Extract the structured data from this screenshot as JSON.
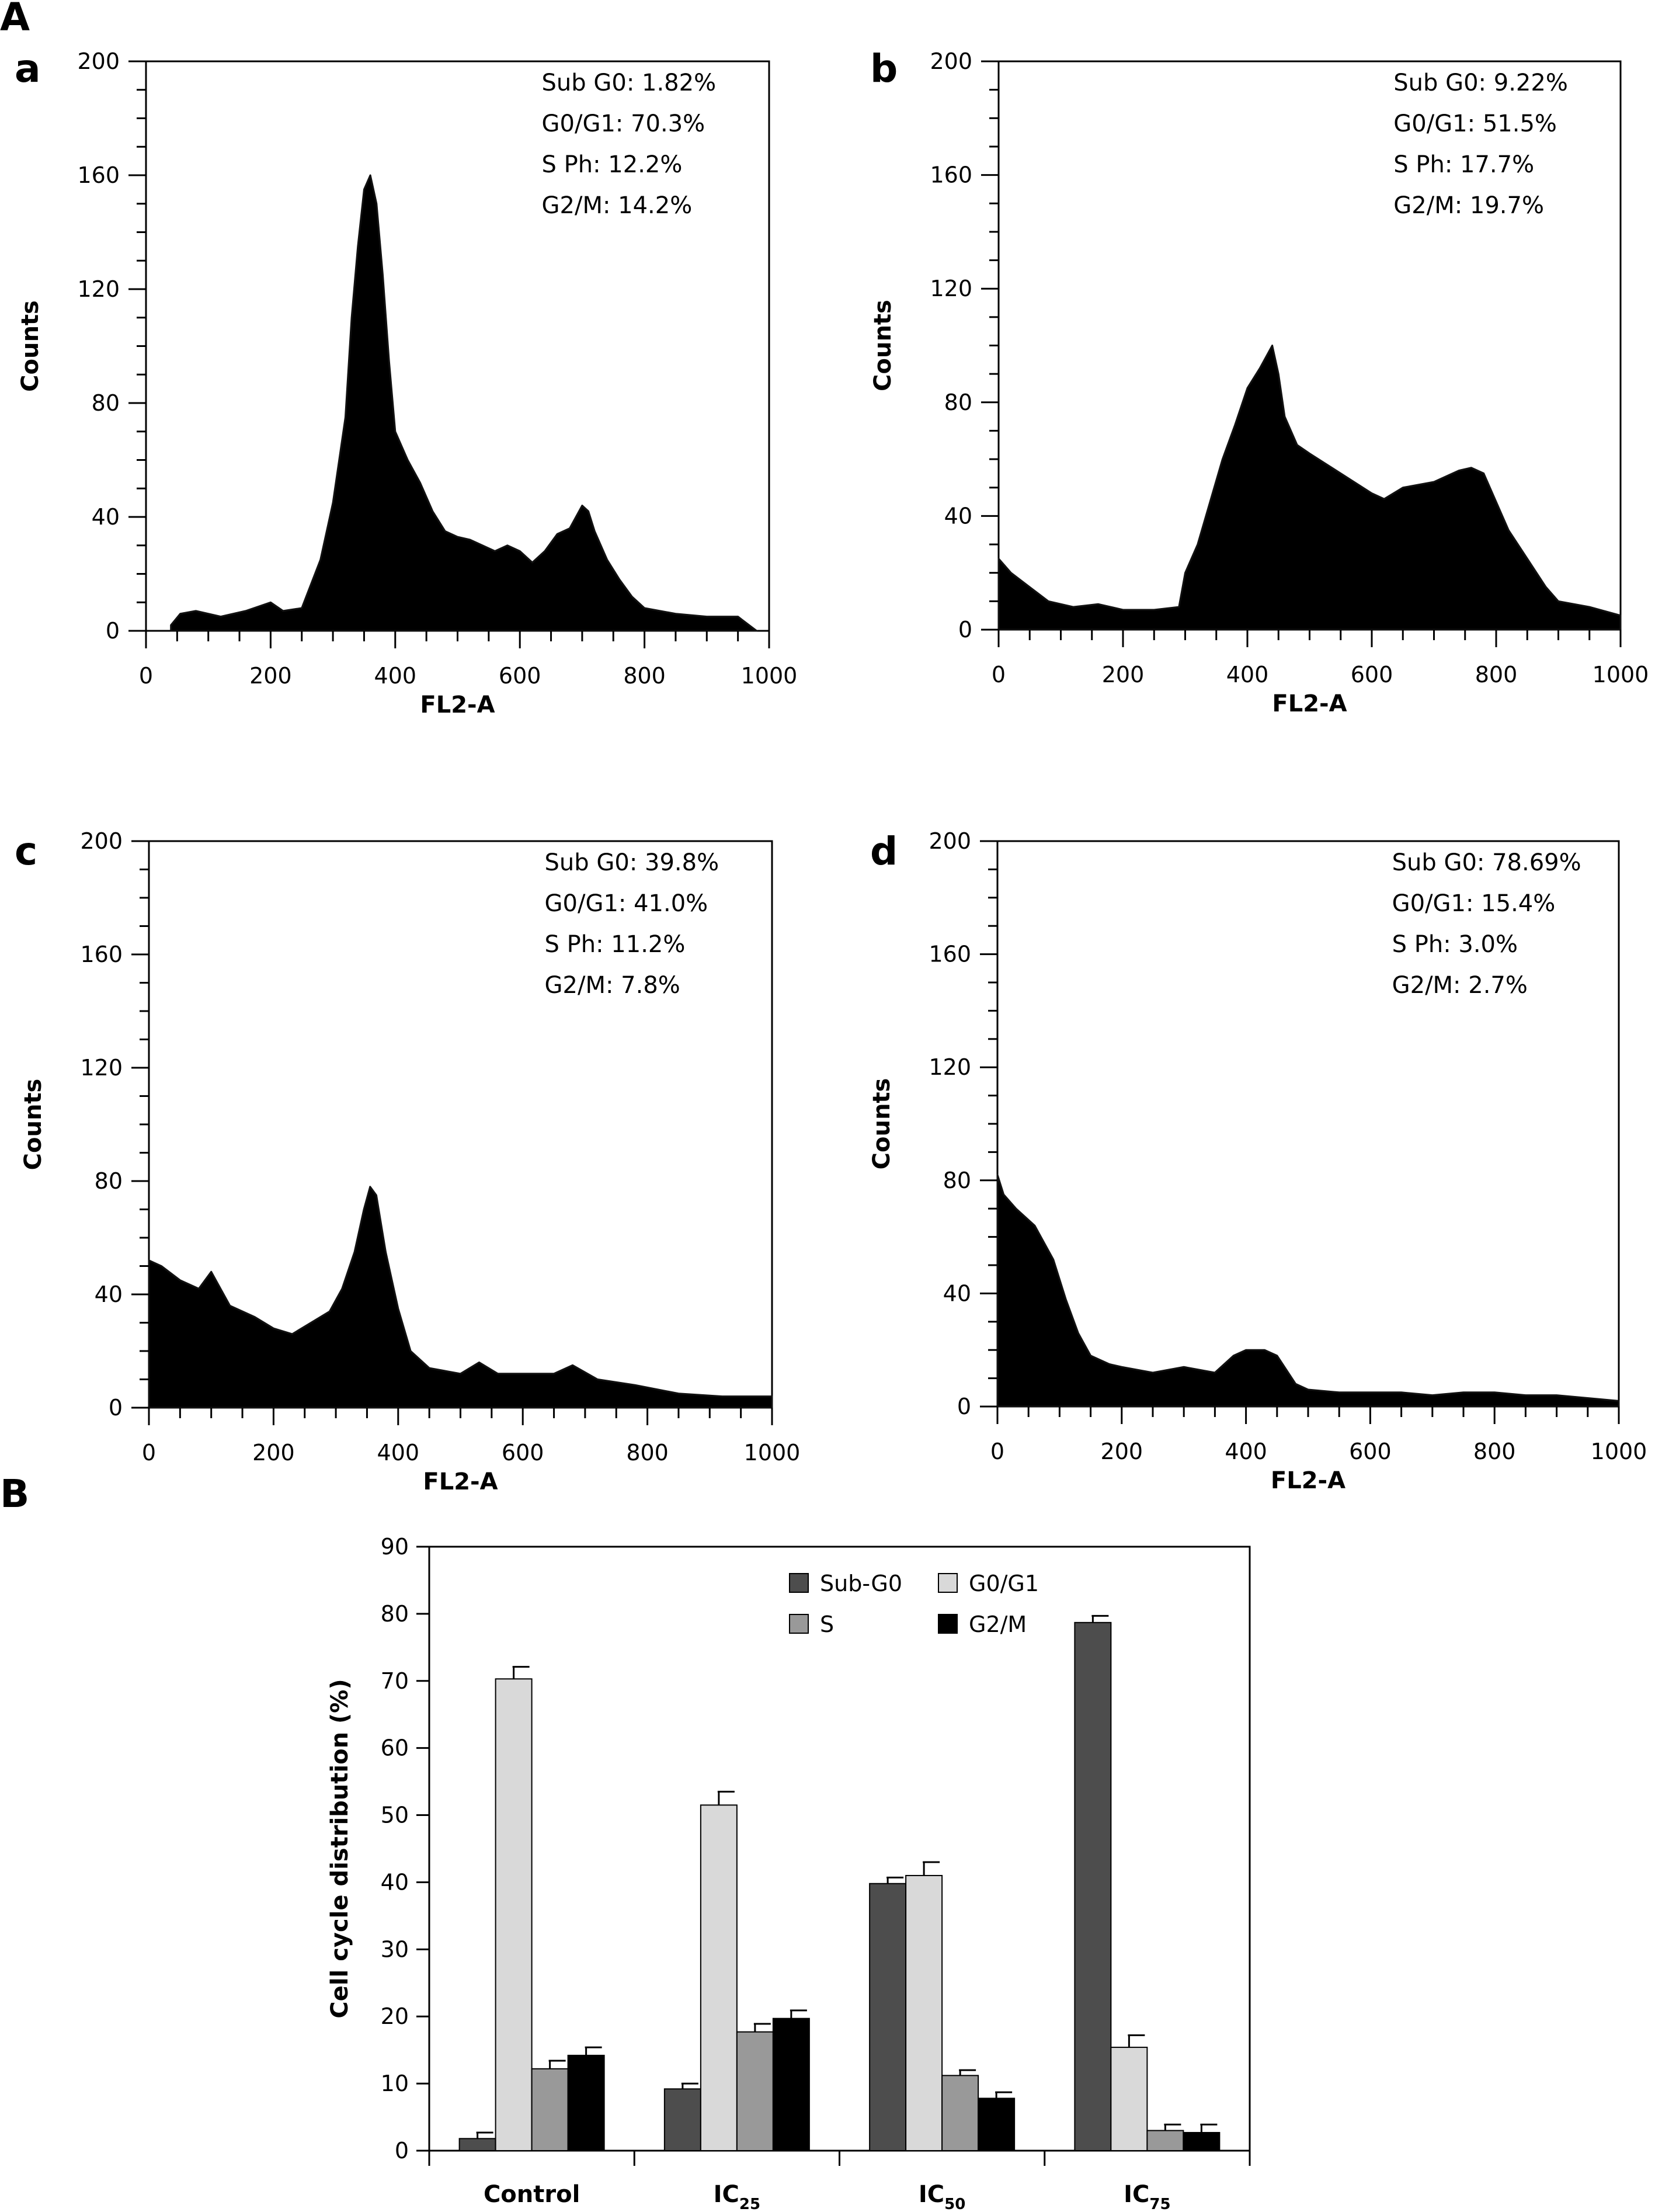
{
  "figure": {
    "panel_A_label": "A",
    "panel_B_label": "B"
  },
  "chart_data": [
    {
      "id": "a",
      "type": "area",
      "label": "a",
      "xlabel": "FL2-A",
      "ylabel": "Counts",
      "xlim": [
        0,
        1000
      ],
      "ylim": [
        0,
        200
      ],
      "xticks": [
        0,
        200,
        400,
        600,
        800,
        1000
      ],
      "yticks": [
        0,
        40,
        80,
        120,
        160,
        200
      ],
      "annotations": [
        "Sub G0: 1.82%",
        "G0/G1: 70.3%",
        "S Ph: 12.2%",
        "G2/M: 14.2%"
      ],
      "x": [
        40,
        55,
        80,
        120,
        160,
        200,
        220,
        250,
        280,
        300,
        320,
        330,
        340,
        350,
        360,
        370,
        380,
        390,
        400,
        420,
        440,
        460,
        480,
        500,
        520,
        540,
        560,
        580,
        600,
        620,
        640,
        660,
        680,
        700,
        710,
        720,
        740,
        760,
        780,
        800,
        850,
        900,
        950,
        980
      ],
      "y": [
        2,
        6,
        7,
        5,
        7,
        10,
        7,
        8,
        25,
        45,
        75,
        110,
        135,
        155,
        160,
        150,
        125,
        95,
        70,
        60,
        52,
        42,
        35,
        33,
        32,
        30,
        28,
        30,
        28,
        24,
        28,
        34,
        36,
        44,
        42,
        35,
        25,
        18,
        12,
        8,
        6,
        5,
        5,
        0
      ]
    },
    {
      "id": "b",
      "type": "area",
      "label": "b",
      "xlabel": "FL2-A",
      "ylabel": "Counts",
      "xlim": [
        0,
        1000
      ],
      "ylim": [
        0,
        200
      ],
      "xticks": [
        0,
        200,
        400,
        600,
        800,
        1000
      ],
      "yticks": [
        0,
        40,
        80,
        120,
        160,
        200
      ],
      "annotations": [
        "Sub G0: 9.22%",
        "G0/G1: 51.5%",
        "S Ph: 17.7%",
        "G2/M: 19.7%"
      ],
      "x": [
        0,
        20,
        50,
        80,
        120,
        160,
        200,
        250,
        290,
        300,
        320,
        340,
        360,
        380,
        400,
        420,
        440,
        450,
        460,
        480,
        500,
        550,
        600,
        620,
        650,
        700,
        740,
        760,
        780,
        800,
        820,
        850,
        880,
        900,
        950,
        1000
      ],
      "y": [
        25,
        20,
        15,
        10,
        8,
        9,
        7,
        7,
        8,
        20,
        30,
        45,
        60,
        72,
        85,
        92,
        100,
        90,
        75,
        65,
        62,
        55,
        48,
        46,
        50,
        52,
        56,
        57,
        55,
        45,
        35,
        25,
        15,
        10,
        8,
        5
      ]
    },
    {
      "id": "c",
      "type": "area",
      "label": "c",
      "xlabel": "FL2-A",
      "ylabel": "Counts",
      "xlim": [
        0,
        1000
      ],
      "ylim": [
        0,
        200
      ],
      "xticks": [
        0,
        200,
        400,
        600,
        800,
        1000
      ],
      "yticks": [
        0,
        40,
        80,
        120,
        160,
        200
      ],
      "annotations": [
        "Sub G0: 39.8%",
        "G0/G1: 41.0%",
        "S Ph: 11.2%",
        "G2/M: 7.8%"
      ],
      "x": [
        0,
        20,
        50,
        80,
        100,
        130,
        170,
        200,
        230,
        260,
        290,
        310,
        330,
        345,
        355,
        365,
        380,
        400,
        420,
        450,
        500,
        530,
        560,
        600,
        650,
        680,
        720,
        780,
        850,
        920,
        1000
      ],
      "y": [
        52,
        50,
        45,
        42,
        48,
        36,
        32,
        28,
        26,
        30,
        34,
        42,
        55,
        70,
        78,
        75,
        55,
        35,
        20,
        14,
        12,
        16,
        12,
        12,
        12,
        15,
        10,
        8,
        5,
        4,
        4
      ]
    },
    {
      "id": "d",
      "type": "area",
      "label": "d",
      "xlabel": "FL2-A",
      "ylabel": "Counts",
      "xlim": [
        0,
        1000
      ],
      "ylim": [
        0,
        200
      ],
      "xticks": [
        0,
        200,
        400,
        600,
        800,
        1000
      ],
      "yticks": [
        0,
        40,
        80,
        120,
        160,
        200
      ],
      "annotations": [
        "Sub G0: 78.69%",
        "G0/G1: 15.4%",
        "S Ph: 3.0%",
        "G2/M: 2.7%"
      ],
      "x": [
        0,
        10,
        30,
        60,
        90,
        110,
        130,
        150,
        180,
        200,
        250,
        300,
        350,
        380,
        400,
        430,
        450,
        480,
        500,
        550,
        600,
        650,
        700,
        750,
        800,
        850,
        900,
        950,
        1000
      ],
      "y": [
        82,
        75,
        70,
        64,
        52,
        38,
        26,
        18,
        15,
        14,
        12,
        14,
        12,
        18,
        20,
        20,
        18,
        8,
        6,
        5,
        5,
        5,
        4,
        5,
        5,
        4,
        4,
        3,
        2
      ]
    },
    {
      "id": "B",
      "type": "bar",
      "ylabel": "Cell cycle distribution (%)",
      "ylim": [
        0,
        90
      ],
      "yticks": [
        0,
        10,
        20,
        30,
        40,
        50,
        60,
        70,
        80,
        90
      ],
      "categories": [
        {
          "base": "Control",
          "sub": ""
        },
        {
          "base": "IC",
          "sub": "25"
        },
        {
          "base": "IC",
          "sub": "50"
        },
        {
          "base": "IC",
          "sub": "75"
        }
      ],
      "series": [
        {
          "name": "Sub-G0",
          "color": "#4d4d4d",
          "values": [
            1.8,
            9.2,
            39.8,
            78.7
          ],
          "errors": [
            0.9,
            0.8,
            0.9,
            1.0
          ]
        },
        {
          "name": "G0/G1",
          "color": "#d9d9d9",
          "values": [
            70.3,
            51.5,
            41.0,
            15.4
          ],
          "errors": [
            1.8,
            2.0,
            2.0,
            1.8
          ]
        },
        {
          "name": "S",
          "color": "#999999",
          "values": [
            12.2,
            17.7,
            11.2,
            3.0
          ],
          "errors": [
            1.2,
            1.2,
            0.8,
            0.9
          ]
        },
        {
          "name": "G2/M",
          "color": "#000000",
          "values": [
            14.2,
            19.7,
            7.8,
            2.7
          ],
          "errors": [
            1.2,
            1.2,
            0.9,
            1.2
          ]
        }
      ],
      "legend_position": "top-right"
    }
  ]
}
